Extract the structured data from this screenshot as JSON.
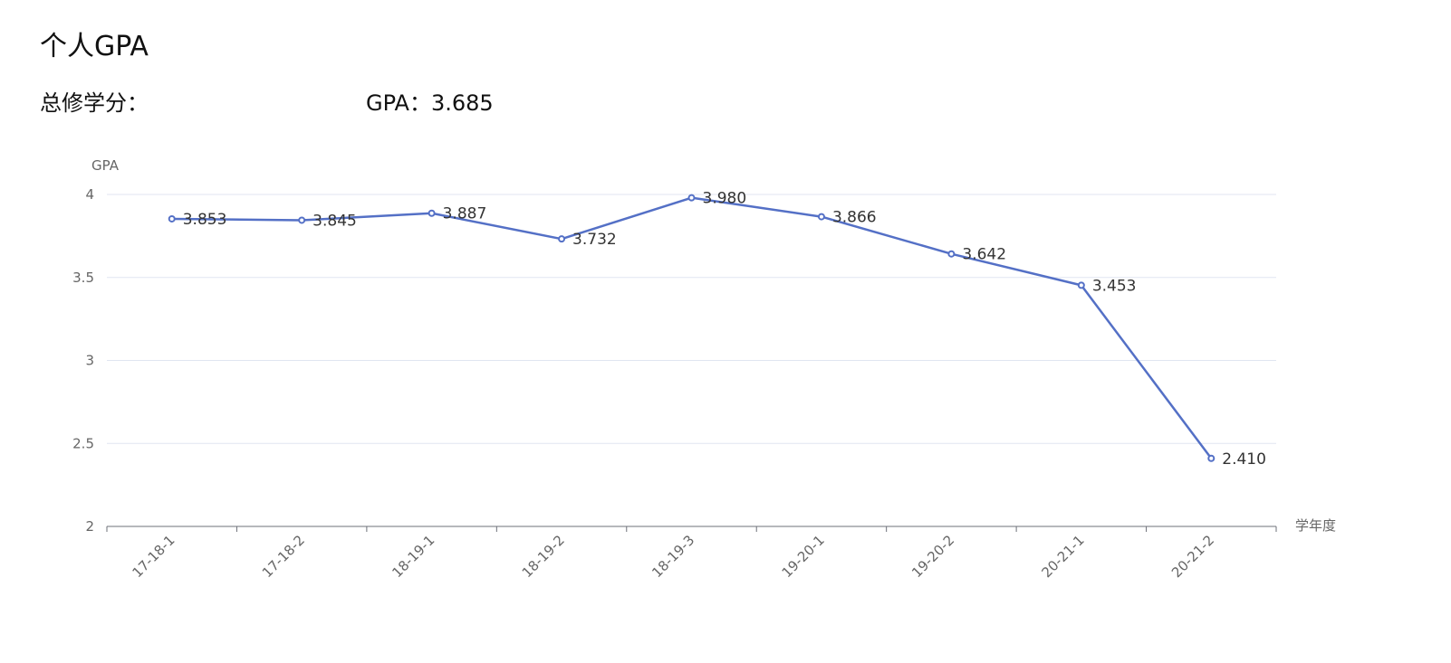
{
  "header": {
    "title": "个人GPA",
    "total_credits_label": "总修学分：",
    "total_credits_value": "",
    "gpa_label": "GPA：",
    "gpa_value": "3.685"
  },
  "chart_data": {
    "type": "line",
    "ylabel": "GPA",
    "xlabel": "学年度",
    "categories": [
      "17-18-1",
      "17-18-2",
      "18-19-1",
      "18-19-2",
      "18-19-3",
      "19-20-1",
      "19-20-2",
      "20-21-1",
      "20-21-2"
    ],
    "series": [
      {
        "values": [
          3.853,
          3.845,
          3.887,
          3.732,
          3.98,
          3.866,
          3.642,
          3.453,
          2.41
        ],
        "data_labels": [
          "3.853",
          "3.845",
          "3.887",
          "3.732",
          "3.980",
          "3.866",
          "3.642",
          "3.453",
          "2.410"
        ]
      }
    ],
    "y_ticks": [
      2,
      2.5,
      3,
      3.5,
      4
    ],
    "y_tick_labels": [
      "2",
      "2.5",
      "3",
      "3.5",
      "4"
    ],
    "ylim": [
      2,
      4
    ],
    "grid": true,
    "colors": {
      "line": "#5470c6",
      "grid": "#e0e6f1",
      "axis": "#6e7079",
      "text": "#666666"
    }
  }
}
